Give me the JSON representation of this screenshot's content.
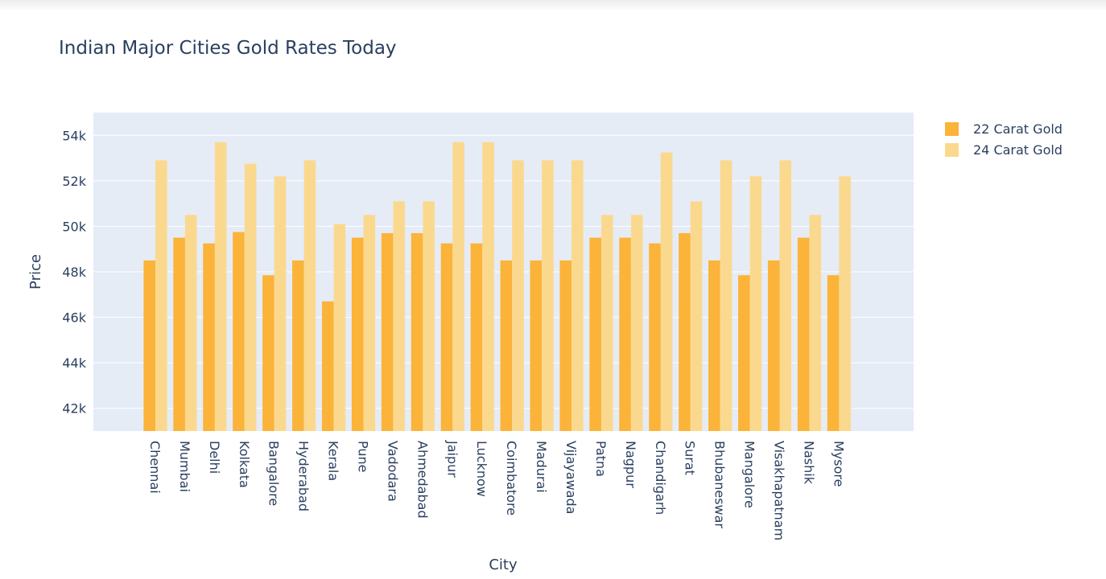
{
  "title": "Indian Major Cities Gold Rates Today",
  "chart_data": {
    "type": "bar",
    "title": "Indian Major Cities Gold Rates Today",
    "xlabel": "City",
    "ylabel": "Price",
    "ylim": [
      41000,
      55000
    ],
    "yticks": [
      42000,
      44000,
      46000,
      48000,
      50000,
      52000,
      54000
    ],
    "ytick_labels": [
      "42k",
      "44k",
      "46k",
      "48k",
      "50k",
      "52k",
      "54k"
    ],
    "grid": true,
    "legend_position": "top-right",
    "categories": [
      "Chennai",
      "Mumbai",
      "Delhi",
      "Kolkata",
      "Bangalore",
      "Hyderabad",
      "Kerala",
      "Pune",
      "Vadodara",
      "Ahmedabad",
      "Jaipur",
      "Lucknow",
      "Coimbatore",
      "Madurai",
      "Vijayawada",
      "Patna",
      "Nagpur",
      "Chandigarh",
      "Surat",
      "Bhubaneswar",
      "Mangalore",
      "Visakhapatnam",
      "Nashik",
      "Mysore"
    ],
    "series": [
      {
        "name": "22 Carat Gold",
        "color": "#fbb339",
        "values": [
          48500,
          49500,
          49250,
          49750,
          47850,
          48500,
          46700,
          49500,
          49700,
          49700,
          49250,
          49250,
          48500,
          48500,
          48500,
          49500,
          49500,
          49250,
          49700,
          48500,
          47850,
          48500,
          49500,
          47850
        ]
      },
      {
        "name": "24 Carat Gold",
        "color": "#fad98f",
        "values": [
          52900,
          50500,
          53700,
          52750,
          52200,
          52900,
          50100,
          50500,
          51100,
          51100,
          53700,
          53700,
          52900,
          52900,
          52900,
          50500,
          50500,
          53250,
          51100,
          52900,
          52200,
          52900,
          50500,
          52200
        ]
      }
    ]
  }
}
